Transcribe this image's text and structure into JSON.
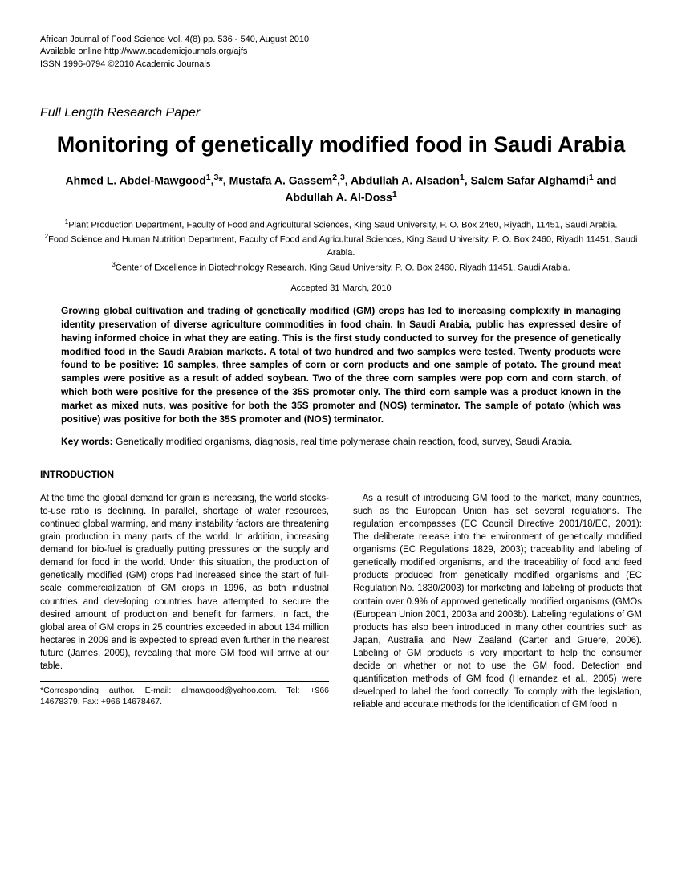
{
  "meta": {
    "line1": "African Journal of Food Science Vol. 4(8) pp. 536 - 540, August 2010",
    "line2": "Available online http://www.academicjournals.org/ajfs",
    "line3": "ISSN 1996-0794 ©2010 Academic Journals"
  },
  "paperType": "Full Length Research Paper",
  "title": "Monitoring of genetically modified food in Saudi Arabia",
  "authorsHtml": "Ahmed L. Abdel-Mawgood<sup>1</sup>,<sup>3</sup>*, Mustafa A. Gassem<sup>2</sup>,<sup>3</sup>, Abdullah A. Alsadon<sup>1</sup>, Salem Safar Alghamdi<sup>1</sup> and Abdullah A. Al-Doss<sup>1</sup>",
  "affiliationsHtml": "<sup>1</sup>Plant Production Department, Faculty of Food and Agricultural Sciences, King Saud University, P. O. Box 2460, Riyadh, 11451, Saudi Arabia.<br><sup>2</sup>Food Science and Human Nutrition Department, Faculty of Food and Agricultural Sciences, King Saud University, P. O. Box 2460, Riyadh 11451, Saudi Arabia.<br><sup>3</sup>Center of Excellence in Biotechnology Research, King Saud University, P. O. Box 2460, Riyadh 11451, Saudi Arabia.",
  "accepted": "Accepted 31 March, 2010",
  "abstract": "Growing global cultivation and trading of genetically modified (GM) crops has led to increasing complexity in managing identity preservation of diverse agriculture commodities in food chain. In Saudi Arabia, public has expressed desire of having informed choice in what they are eating. This is the first study conducted to survey for the presence of genetically modified food in the Saudi Arabian markets. A total of two hundred and two samples were tested. Twenty products were found to be positive: 16 samples, three samples of corn or corn products and one sample of potato. The ground meat samples were positive as a result of added soybean. Two of the three corn samples were pop corn and corn starch, of which both were positive for the presence of the 35S promoter only. The third corn sample was a product known in the market as mixed nuts, was positive for both the 35S promoter and (NOS) terminator. The sample of potato (which was positive) was positive for both the 35S promoter and (NOS) terminator.",
  "keywordsLabel": "Key words:",
  "keywordsText": " Genetically modified organisms, diagnosis, real time polymerase chain reaction, food, survey, Saudi Arabia.",
  "introHeading": "INTRODUCTION",
  "col1p1": "At the time the global demand for grain is increasing, the world stocks-to-use ratio is declining. In parallel, shortage of water resources, continued global warming, and many instability factors are threatening grain production in many parts of the world. In addition, increasing demand for bio-fuel is gradually putting pressures on the supply and demand for food in the world. Under this situation, the production of genetically modified (GM) crops had increased since the start of full-scale commercialization of GM crops in 1996, as both industrial countries and developing countries have attempted to secure the desired amount of production and benefit for farmers. In fact, the global area of GM crops in 25 countries exceeded in about 134 million hectares in 2009 and is expected to spread even further in the nearest future (James, 2009), revealing that more GM food will arrive at our table.",
  "col2p1": "As a result of introducing GM food to the market, many countries, such as the European Union has set several regulations. The regulation encompasses (EC Council Directive 2001/18/EC, 2001): The deliberate release into the environment of genetically modified organisms (EC Regulations 1829, 2003); traceability and labeling of genetically modified organisms, and the traceability of food and feed products produced from genetically modified organisms and (EC Regulation No. 1830/2003) for marketing and labeling of products that contain over 0.9% of approved genetically modified organisms (GMOs (European Union 2001, 2003a and 2003b). Labeling regulations of GM products has also been introduced in many other countries such as Japan, Australia and New Zealand (Carter and Gruere, 2006). Labeling of GM products is very important to help the consumer decide on whether or not to use the GM food. Detection and quantification methods of GM food (Hernandez et al., 2005) were developed to label the food correctly. To comply with the legislation, reliable and accurate methods for the identification of GM food in",
  "footnote": "*Corresponding author. E-mail: almawgood@yahoo.com. Tel: +966 14678379. Fax: +966 14678467."
}
